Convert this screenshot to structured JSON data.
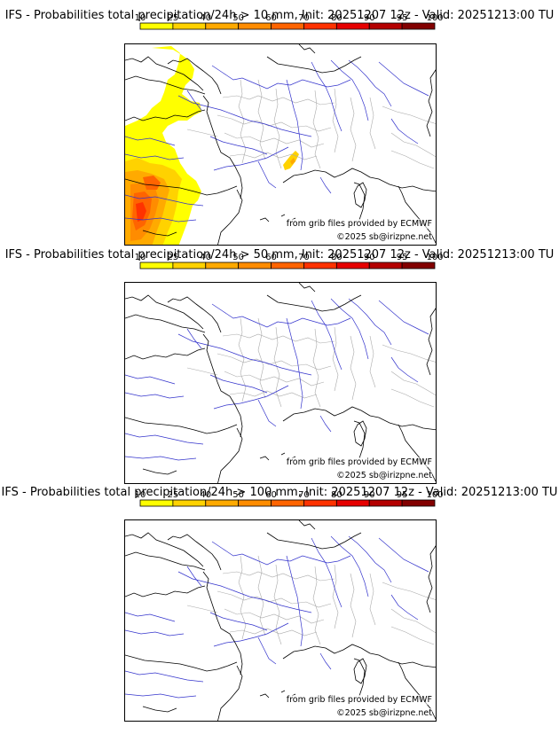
{
  "panels": [
    {
      "title": "IFS - Probabilities total precipitation/24h > 10 mm, Init: 20251207 12z - Valid: 20251213:00 TU",
      "source_credit": "from grib files provided by ECMWF",
      "copyright": "©2025 sb@irizpne.net",
      "has_precipitation": true
    },
    {
      "title": "IFS - Probabilities total precipitation/24h > 50 mm, Init: 20251207 12z - Valid: 20251213:00 TU",
      "source_credit": "from grib files provided by ECMWF",
      "copyright": "©2025 sb@irizpne.net",
      "has_precipitation": false
    },
    {
      "title": "IFS - Probabilities total precipitation/24h > 100 mm, Init: 20251207 12z - Valid: 20251213:00 TU",
      "source_credit": "from grib files provided by ECMWF",
      "copyright": "©2025 sb@irizpne.net",
      "has_precipitation": false
    }
  ],
  "colorbar": {
    "tick_labels": [
      "10",
      "25",
      "40",
      "50",
      "60",
      "70",
      "80",
      "90",
      "95",
      "100"
    ],
    "colors": [
      "#ffff00",
      "#ffd200",
      "#ffaa00",
      "#ff8c00",
      "#ff6400",
      "#ff3200",
      "#e60000",
      "#b40000",
      "#820000"
    ]
  },
  "map_colors": {
    "coast": "#000000",
    "rivers": "#3333cc",
    "regions": "#aaaaaa"
  }
}
